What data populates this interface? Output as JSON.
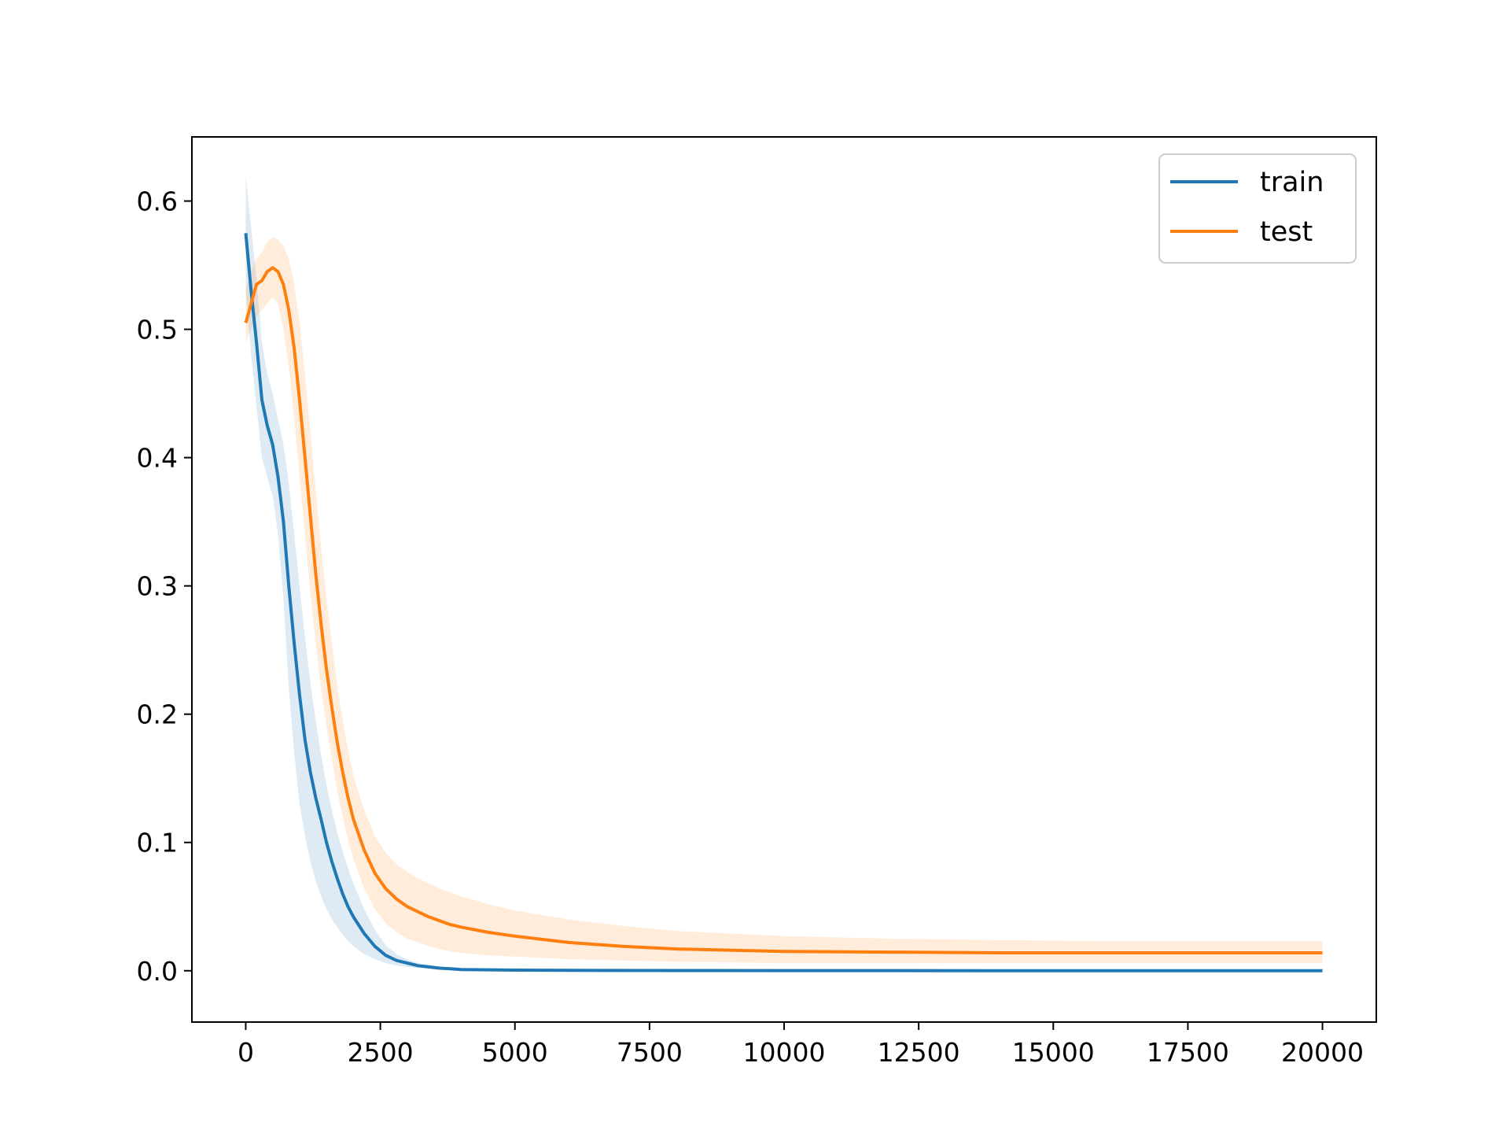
{
  "chart_data": {
    "type": "line",
    "title": "",
    "xlabel": "",
    "ylabel": "",
    "xlim": [
      -1000,
      21000
    ],
    "ylim": [
      -0.04,
      0.65
    ],
    "xticks": [
      0,
      2500,
      5000,
      7500,
      10000,
      12500,
      15000,
      17500,
      20000
    ],
    "yticks": [
      0.0,
      0.1,
      0.2,
      0.3,
      0.4,
      0.5,
      0.6
    ],
    "grid": false,
    "legend_position": "top-right",
    "series": [
      {
        "name": "train",
        "color": "#1f77b4",
        "x": [
          0,
          100,
          200,
          300,
          400,
          500,
          600,
          700,
          800,
          900,
          1000,
          1100,
          1200,
          1300,
          1400,
          1500,
          1600,
          1700,
          1800,
          1900,
          2000,
          2200,
          2400,
          2600,
          2800,
          3000,
          3200,
          3400,
          3600,
          3800,
          4000,
          4500,
          5000,
          6000,
          8000,
          10000,
          12000,
          14000,
          16000,
          18000,
          20000
        ],
        "y": [
          0.575,
          0.53,
          0.49,
          0.445,
          0.425,
          0.41,
          0.385,
          0.35,
          0.3,
          0.255,
          0.215,
          0.18,
          0.155,
          0.135,
          0.118,
          0.1,
          0.085,
          0.072,
          0.06,
          0.05,
          0.042,
          0.029,
          0.019,
          0.012,
          0.008,
          0.006,
          0.004,
          0.003,
          0.002,
          0.0015,
          0.001,
          0.0007,
          0.0005,
          0.0003,
          0.0002,
          0.0001,
          0.0001,
          0.0,
          0.0,
          0.0,
          0.0
        ],
        "band_lower": [
          0.53,
          0.48,
          0.44,
          0.4,
          0.385,
          0.37,
          0.34,
          0.29,
          0.22,
          0.17,
          0.13,
          0.105,
          0.085,
          0.07,
          0.058,
          0.048,
          0.04,
          0.034,
          0.028,
          0.023,
          0.019,
          0.013,
          0.009,
          0.006,
          0.004,
          0.003,
          0.002,
          0.0015,
          0.001,
          0.0008,
          0.0005,
          0.0003,
          0.0002,
          0.0001,
          0.0,
          0.0,
          0.0,
          0.0,
          0.0,
          0.0,
          0.0
        ],
        "band_upper": [
          0.62,
          0.58,
          0.54,
          0.49,
          0.465,
          0.45,
          0.43,
          0.41,
          0.38,
          0.34,
          0.3,
          0.26,
          0.225,
          0.195,
          0.168,
          0.145,
          0.125,
          0.108,
          0.093,
          0.08,
          0.068,
          0.048,
          0.032,
          0.02,
          0.013,
          0.009,
          0.006,
          0.0045,
          0.003,
          0.002,
          0.0015,
          0.001,
          0.0008,
          0.0005,
          0.0003,
          0.0002,
          0.0002,
          0.0001,
          0.0001,
          0.0001,
          0.0001
        ]
      },
      {
        "name": "test",
        "color": "#ff7f0e",
        "x": [
          0,
          100,
          200,
          300,
          400,
          500,
          600,
          700,
          800,
          900,
          1000,
          1100,
          1200,
          1300,
          1400,
          1500,
          1600,
          1700,
          1800,
          1900,
          2000,
          2200,
          2400,
          2600,
          2800,
          3000,
          3200,
          3400,
          3600,
          3800,
          4000,
          4500,
          5000,
          6000,
          7000,
          8000,
          10000,
          12000,
          14000,
          16000,
          18000,
          20000
        ],
        "y": [
          0.505,
          0.52,
          0.535,
          0.538,
          0.545,
          0.548,
          0.545,
          0.535,
          0.515,
          0.485,
          0.445,
          0.4,
          0.355,
          0.31,
          0.27,
          0.235,
          0.205,
          0.178,
          0.155,
          0.135,
          0.118,
          0.094,
          0.076,
          0.064,
          0.056,
          0.05,
          0.046,
          0.042,
          0.039,
          0.036,
          0.034,
          0.03,
          0.027,
          0.022,
          0.019,
          0.017,
          0.015,
          0.0145,
          0.014,
          0.014,
          0.014,
          0.014
        ],
        "band_lower": [
          0.49,
          0.5,
          0.51,
          0.515,
          0.52,
          0.525,
          0.52,
          0.5,
          0.47,
          0.43,
          0.385,
          0.34,
          0.295,
          0.255,
          0.22,
          0.19,
          0.165,
          0.14,
          0.12,
          0.102,
          0.087,
          0.064,
          0.048,
          0.037,
          0.03,
          0.025,
          0.022,
          0.019,
          0.017,
          0.015,
          0.014,
          0.012,
          0.011,
          0.009,
          0.008,
          0.007,
          0.006,
          0.006,
          0.006,
          0.006,
          0.006,
          0.006
        ],
        "band_upper": [
          0.53,
          0.545,
          0.555,
          0.56,
          0.568,
          0.572,
          0.57,
          0.565,
          0.555,
          0.535,
          0.505,
          0.465,
          0.42,
          0.375,
          0.33,
          0.29,
          0.255,
          0.222,
          0.195,
          0.172,
          0.152,
          0.125,
          0.105,
          0.092,
          0.083,
          0.077,
          0.072,
          0.068,
          0.064,
          0.061,
          0.058,
          0.052,
          0.047,
          0.04,
          0.035,
          0.031,
          0.027,
          0.025,
          0.024,
          0.023,
          0.023,
          0.023
        ]
      }
    ]
  }
}
